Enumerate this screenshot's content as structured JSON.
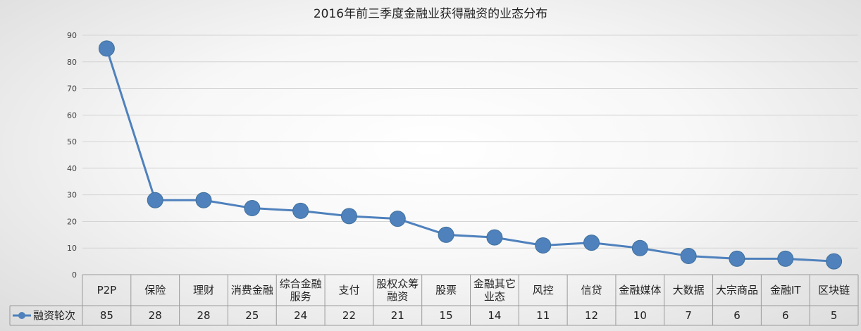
{
  "chart_data": {
    "type": "line",
    "title": "2016年前三季度金融业获得融资的业态分布",
    "xlabel": "",
    "ylabel": "",
    "ylim": [
      0,
      90
    ],
    "yticks": [
      0,
      10,
      20,
      30,
      40,
      50,
      60,
      70,
      80,
      90
    ],
    "grid": true,
    "legend": "bottom-left (data table)",
    "data_table": true,
    "categories": [
      [
        "P2P"
      ],
      [
        "保险"
      ],
      [
        "理财"
      ],
      [
        "消费金融"
      ],
      [
        "综合金融",
        "服务"
      ],
      [
        "支付"
      ],
      [
        "股权众筹",
        "融资"
      ],
      [
        "股票"
      ],
      [
        "金融其它",
        "业态"
      ],
      [
        "风控"
      ],
      [
        "信贷"
      ],
      [
        "金融媒体"
      ],
      [
        "大数据"
      ],
      [
        "大宗商品"
      ],
      [
        "金融IT"
      ],
      [
        "区块链"
      ]
    ],
    "series": [
      {
        "name": "融资轮次",
        "color": "#4f81bd",
        "values": [
          85,
          28,
          28,
          25,
          24,
          22,
          21,
          15,
          14,
          11,
          12,
          10,
          7,
          6,
          6,
          5
        ]
      }
    ]
  }
}
